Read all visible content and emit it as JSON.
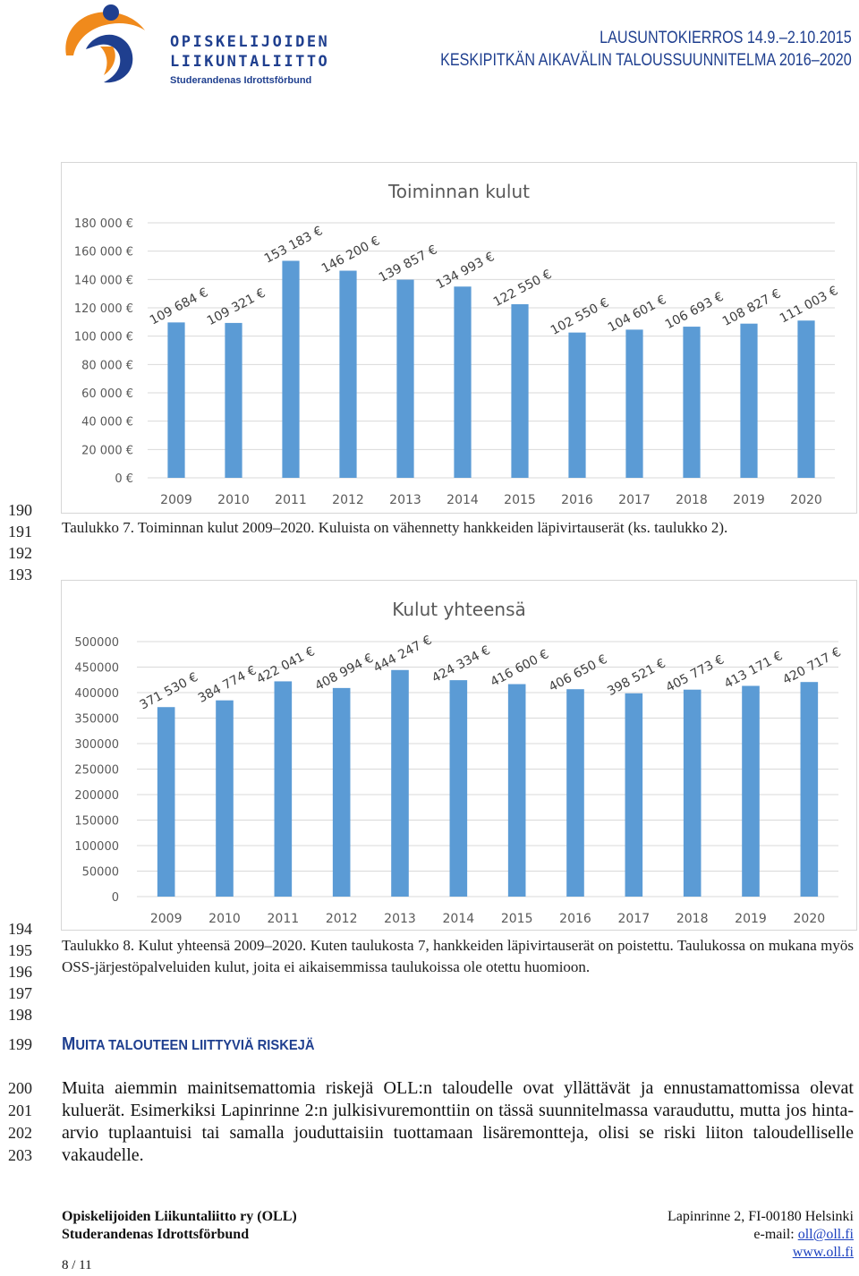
{
  "header": {
    "logo": {
      "line1": "OPISKELIJOIDEN",
      "line2": "LIIKUNTALIITTO",
      "line3": "Studerandenas Idrottsförbund",
      "colors": {
        "orange": "#f08a1c",
        "blue": "#1f3f8f"
      }
    },
    "right_line1": "LAUSUNTOKIERROS 14.9.–2.10.2015",
    "right_line2": "KESKIPITKÄN AIKAVÄLIN TALOUSSUUNNITELMA 2016–2020"
  },
  "chart_data": [
    {
      "type": "bar",
      "title": "Toiminnan kulut",
      "categories": [
        "2009",
        "2010",
        "2011",
        "2012",
        "2013",
        "2014",
        "2015",
        "2016",
        "2017",
        "2018",
        "2019",
        "2020"
      ],
      "values": [
        109684,
        109321,
        153183,
        146200,
        139857,
        134993,
        122550,
        102550,
        104601,
        106693,
        108827,
        111003
      ],
      "data_labels": [
        "109 684 €",
        "109 321 €",
        "153 183 €",
        "146 200 €",
        "139 857 €",
        "134 993 €",
        "122 550 €",
        "102 550 €",
        "104 601 €",
        "106 693 €",
        "108 827 €",
        "111 003 €"
      ],
      "y_ticks": [
        "0 €",
        "20 000 €",
        "40 000 €",
        "60 000 €",
        "80 000 €",
        "100 000 €",
        "120 000 €",
        "140 000 €",
        "160 000 €",
        "180 000 €"
      ],
      "ylim": [
        0,
        180000
      ],
      "grid": true,
      "bar_color": "#5b9bd5"
    },
    {
      "type": "bar",
      "title": "Kulut yhteensä",
      "categories": [
        "2009",
        "2010",
        "2011",
        "2012",
        "2013",
        "2014",
        "2015",
        "2016",
        "2017",
        "2018",
        "2019",
        "2020"
      ],
      "values": [
        371530,
        384774,
        422041,
        408994,
        444247,
        424334,
        416600,
        406650,
        398521,
        405773,
        413171,
        420717
      ],
      "data_labels": [
        "371 530 €",
        "384 774 €",
        "422 041 €",
        "408 994 €",
        "444 247 €",
        "424 334 €",
        "416 600 €",
        "406 650 €",
        "398 521 €",
        "405 773 €",
        "413 171 €",
        "420 717 €"
      ],
      "y_ticks": [
        "0",
        "50000",
        "100000",
        "150000",
        "200000",
        "250000",
        "300000",
        "350000",
        "400000",
        "450000",
        "500000"
      ],
      "ylim": [
        0,
        500000
      ],
      "grid": true,
      "bar_color": "#5b9bd5"
    }
  ],
  "line_numbers": {
    "block1": [
      "190",
      "191",
      "192",
      "193"
    ],
    "block2": [
      "194",
      "195",
      "196",
      "197",
      "198"
    ],
    "block3": [
      "199"
    ],
    "block4": [
      "200",
      "201",
      "202",
      "203"
    ]
  },
  "caption1": "Taulukko 7. Toiminnan kulut 2009–2020. Kuluista on vähennetty hankkeiden läpivirtauserät (ks. taulukko 2).",
  "caption2": "Taulukko 8. Kulut yhteensä 2009–2020. Kuten taulukosta 7, hankkeiden läpivirtauserät on poistettu. Taulukossa on mukana myös OSS-järjestöpalveluiden kulut, joita ei aikaisemmissa taulukoissa ole otettu huomioon.",
  "section": {
    "heading_first": "M",
    "heading_rest": "UITA TALOUTEEN LIITTYVIÄ RISKEJÄ",
    "paragraph": "Muita aiemmin mainitsemattomia riskejä OLL:n taloudelle ovat yllättävät ja ennustamattomissa olevat kuluerät. Esimerkiksi Lapinrinne 2:n julkisivuremonttiin on tässä suunnitelmassa varauduttu, mutta jos hinta-arvio tuplaantuisi tai samalla jouduttaisiin tuottamaan lisäremontteja, olisi se riski liiton taloudelliselle vakaudelle."
  },
  "footer": {
    "org1": "Opiskelijoiden Liikuntaliitto ry (OLL)",
    "org2": "Studerandenas Idrottsförbund",
    "address": "Lapinrinne 2, FI-00180 Helsinki",
    "email_label": "e-mail: ",
    "email": "oll@oll.fi",
    "web": "www.oll.fi",
    "page": "8 / 11"
  }
}
